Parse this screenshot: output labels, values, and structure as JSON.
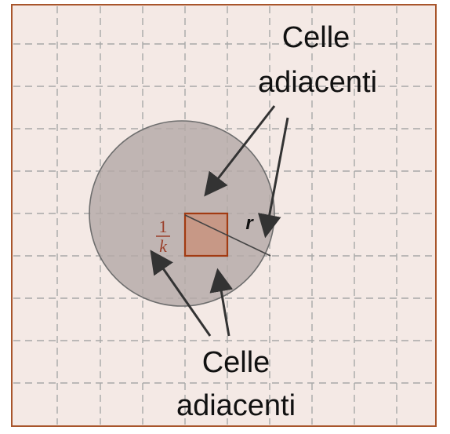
{
  "labels": {
    "top_line1": "Celle",
    "top_line2": "adiacenti",
    "bottom_line1": "Celle",
    "bottom_line2": "adiacenti",
    "radius": "r",
    "fraction_numerator": "1",
    "fraction_denominator": "k"
  },
  "colors": {
    "background": "#f4e9e5",
    "frame": "#a8552b",
    "grid": "#a8a8a8",
    "circle_fill": "#b5aaa7",
    "circle_stroke": "#6e6e6e",
    "cell_fill": "#c79886",
    "cell_stroke": "#a23b12",
    "fraction": "#9b3f2a",
    "arrow": "#333333"
  }
}
